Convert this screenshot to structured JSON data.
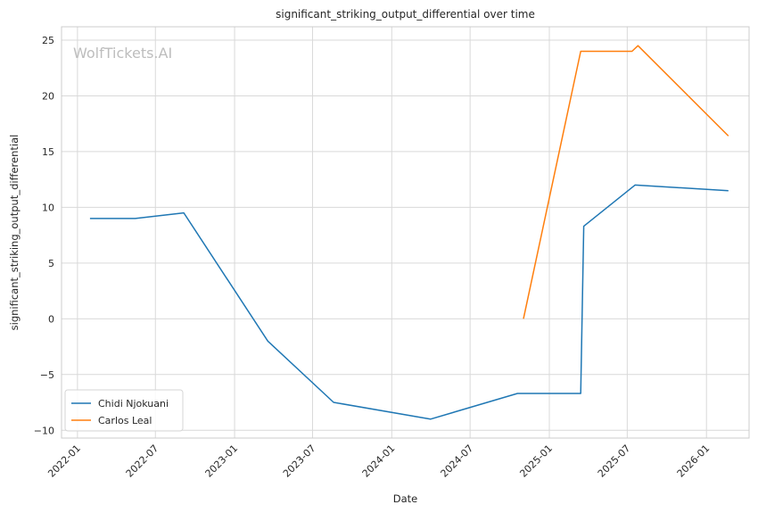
{
  "chart_data": {
    "type": "line",
    "title": "significant_striking_output_differential over time",
    "xlabel": "Date",
    "ylabel": "significant_striking_output_differential",
    "watermark": "WolfTickets.AI",
    "xlim": [
      "2021-11-25",
      "2026-04-10"
    ],
    "ylim": [
      -10.7,
      26.2
    ],
    "x_ticks": [
      "2022-01-01",
      "2022-07-01",
      "2023-01-01",
      "2023-07-01",
      "2024-01-01",
      "2024-07-01",
      "2025-01-01",
      "2025-07-01",
      "2026-01-01"
    ],
    "x_tick_labels": [
      "2022-01",
      "2022-07",
      "2023-01",
      "2023-07",
      "2024-01",
      "2024-07",
      "2025-01",
      "2025-07",
      "2026-01"
    ],
    "y_ticks": [
      -10,
      -5,
      0,
      5,
      10,
      15,
      20,
      25
    ],
    "y_tick_labels": [
      "−10",
      "−5",
      "0",
      "5",
      "10",
      "15",
      "20",
      "25"
    ],
    "grid": true,
    "legend_position": "lower-left",
    "series": [
      {
        "name": "Chidi Njokuani",
        "color": "#1f77b4",
        "points": [
          {
            "x": "2022-01-30",
            "y": 9.0
          },
          {
            "x": "2022-05-15",
            "y": 9.0
          },
          {
            "x": "2022-09-05",
            "y": 9.5
          },
          {
            "x": "2023-03-19",
            "y": -2.0
          },
          {
            "x": "2023-08-19",
            "y": -7.5
          },
          {
            "x": "2024-03-31",
            "y": -9.0
          },
          {
            "x": "2024-10-19",
            "y": -6.7
          },
          {
            "x": "2025-03-15",
            "y": -6.7
          },
          {
            "x": "2025-03-22",
            "y": 8.3
          },
          {
            "x": "2025-07-19",
            "y": 12.0
          },
          {
            "x": "2026-02-21",
            "y": 11.5
          }
        ]
      },
      {
        "name": "Carlos Leal",
        "color": "#ff7f0e",
        "points": [
          {
            "x": "2024-11-02",
            "y": 0.0
          },
          {
            "x": "2025-03-15",
            "y": 24.0
          },
          {
            "x": "2025-07-12",
            "y": 24.0
          },
          {
            "x": "2025-07-26",
            "y": 24.5
          },
          {
            "x": "2026-02-21",
            "y": 16.4
          }
        ]
      }
    ]
  }
}
